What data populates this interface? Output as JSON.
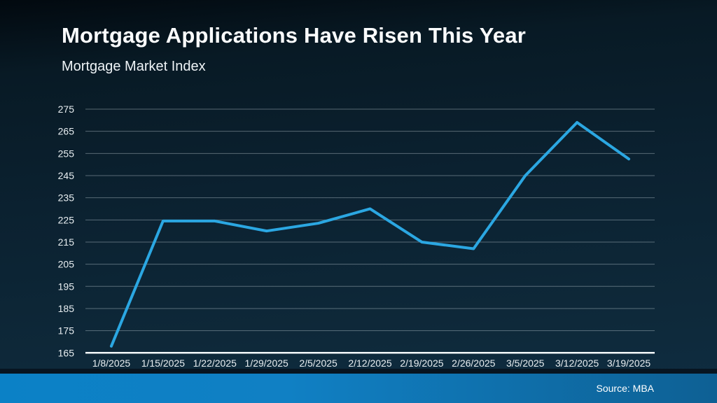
{
  "header": {
    "title": "Mortgage Applications Have Risen This Year",
    "subtitle": "Mortgage Market Index"
  },
  "footer": {
    "source": "Source: MBA"
  },
  "colors": {
    "accent_line": "#2ba7e2",
    "footer_bar_left": "#0b81c6",
    "footer_bar_mid": "#1080c4",
    "footer_bar_right": "#0e6094",
    "background_top": "#02090f",
    "background_bottom": "#0f2d42",
    "gridline": "#d4e1e7",
    "axis": "#f2f7f9",
    "tick_text": "#e8eef1"
  },
  "chart_data": {
    "type": "line",
    "title": "Mortgage Applications Have Risen This Year",
    "subtitle": "Mortgage Market Index",
    "source": "Source: MBA",
    "categories": [
      "1/8/2025",
      "1/15/2025",
      "1/22/2025",
      "1/29/2025",
      "2/5/2025",
      "2/12/2025",
      "2/19/2025",
      "2/26/2025",
      "3/5/2025",
      "3/12/2025",
      "3/19/2025"
    ],
    "values": [
      168,
      224.5,
      224.5,
      220,
      223.5,
      230,
      215,
      212,
      245,
      269,
      252.5
    ],
    "xlabel": "",
    "ylabel": "",
    "ylim": [
      165,
      275
    ],
    "ytick_step": 10,
    "grid": true,
    "legend_position": "none",
    "line_color": "#2ba7e2"
  }
}
